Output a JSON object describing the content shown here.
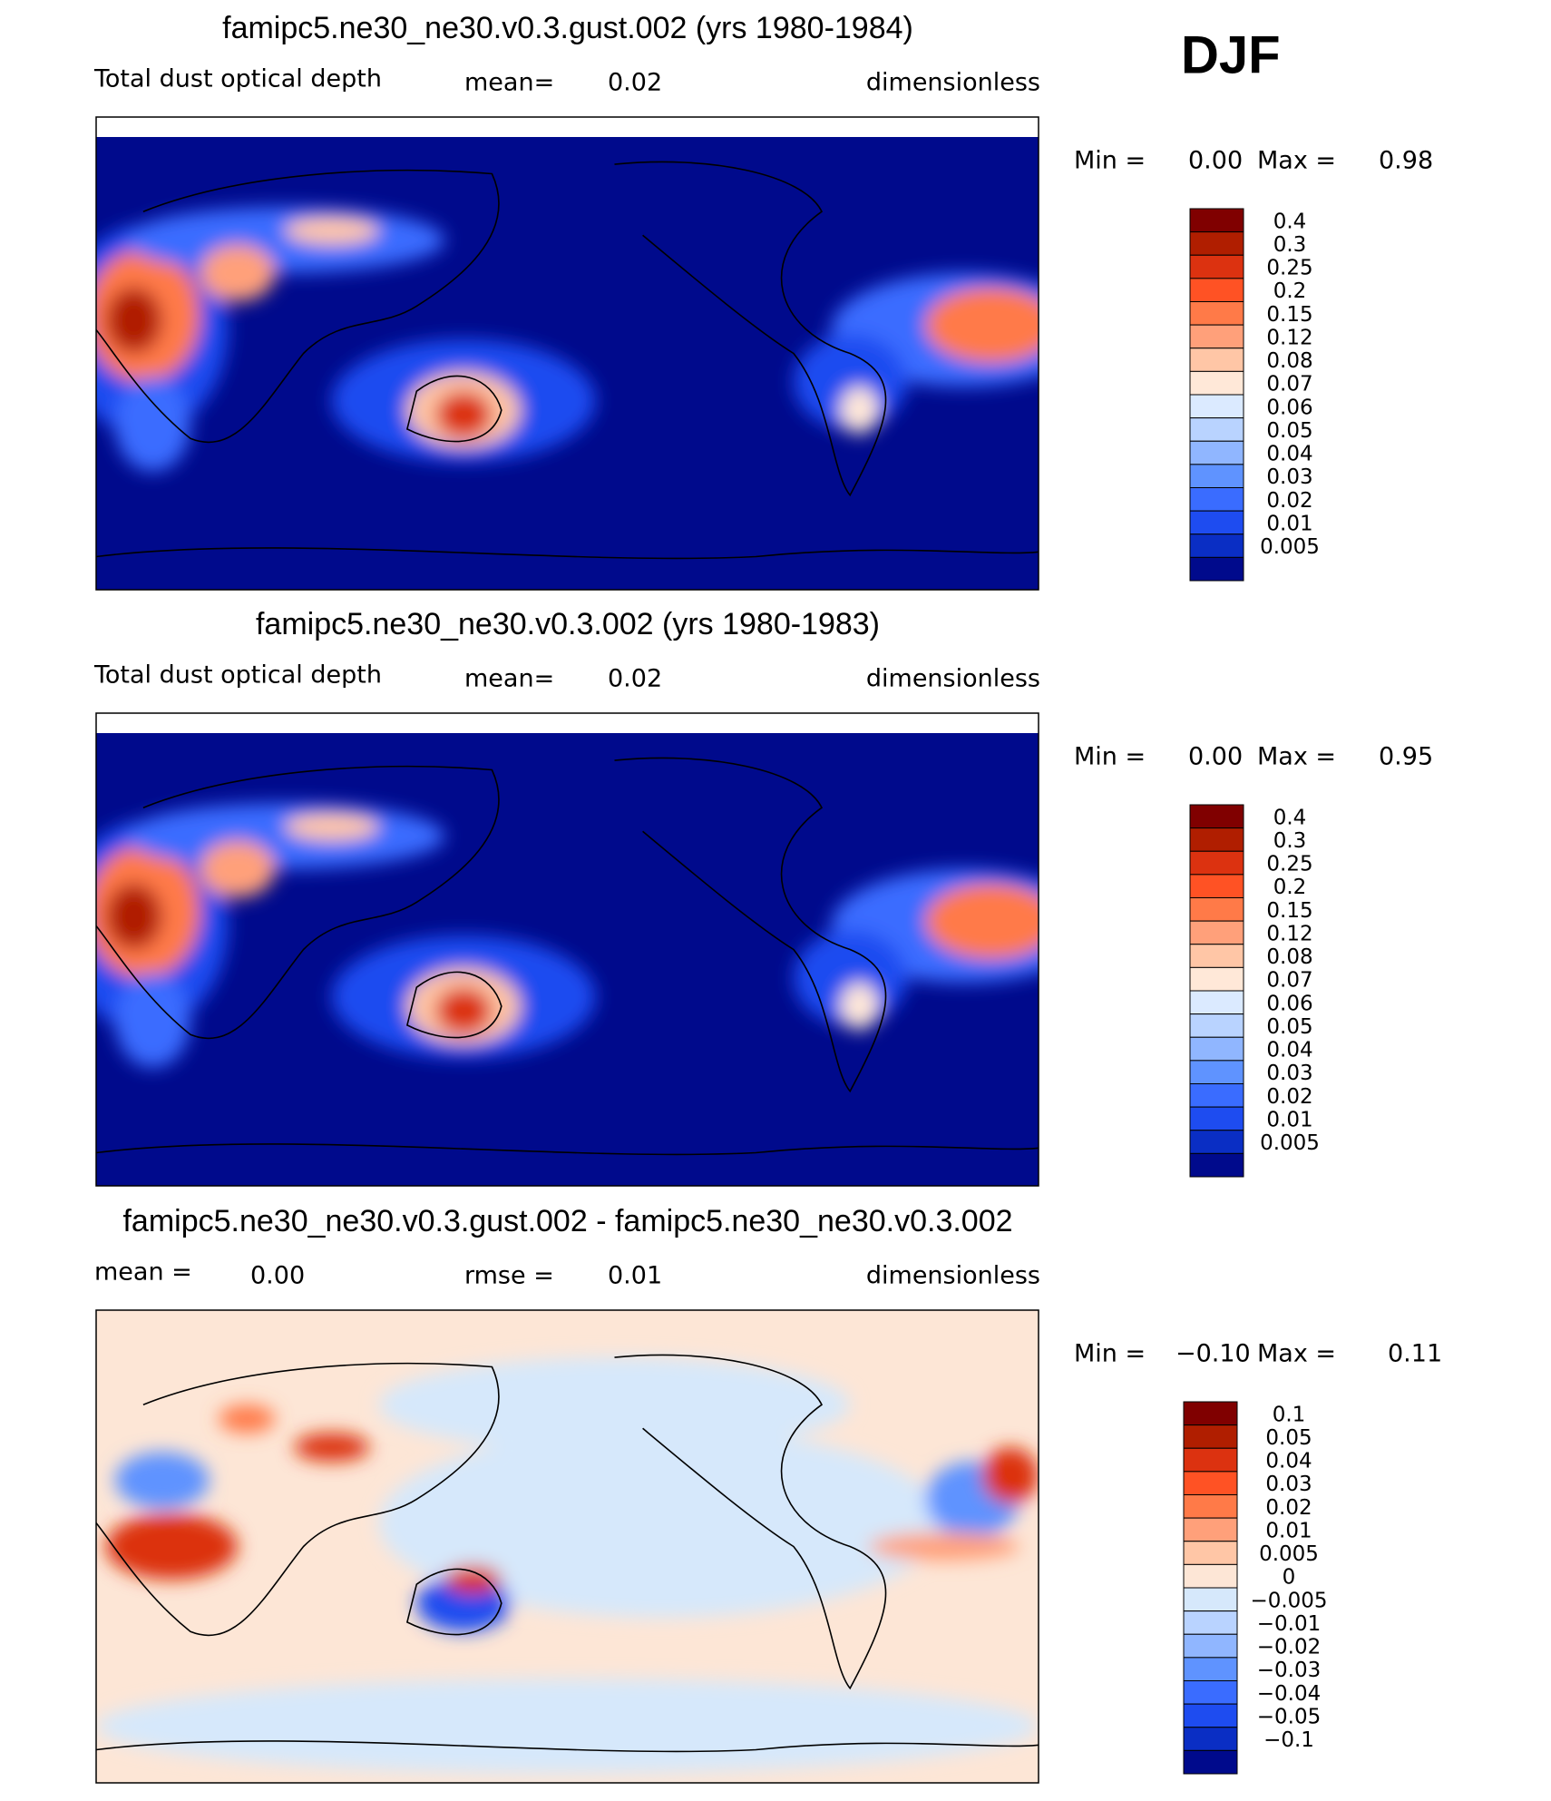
{
  "season": "DJF",
  "panels": [
    {
      "title": "famipc5.ne30_ne30.v0.3.gust.002 (yrs 1980-1984)",
      "left_label": "Total dust optical depth",
      "stat_label": "mean=",
      "stat_value": "0.02",
      "units": "dimensionless",
      "min_label": "Min =",
      "min_value": "0.00",
      "max_label": "Max =",
      "max_value": "0.98",
      "colorbar": {
        "labels": [
          "0.4",
          "0.3",
          "0.25",
          "0.2",
          "0.15",
          "0.12",
          "0.08",
          "0.07",
          "0.06",
          "0.05",
          "0.04",
          "0.03",
          "0.02",
          "0.01",
          "0.005"
        ],
        "colors": [
          "#800000",
          "#b01e00",
          "#dc3210",
          "#ff5224",
          "#ff7a48",
          "#ffa07a",
          "#ffc6a6",
          "#ffe8d8",
          "#dbeaff",
          "#b9d3ff",
          "#90b6ff",
          "#5f93ff",
          "#3a6cff",
          "#1e4cf0",
          "#0a2ec4",
          "#000a8c"
        ]
      }
    },
    {
      "title": "famipc5.ne30_ne30.v0.3.002 (yrs 1980-1983)",
      "left_label": "Total dust optical depth",
      "stat_label": "mean=",
      "stat_value": "0.02",
      "units": "dimensionless",
      "min_label": "Min =",
      "min_value": "0.00",
      "max_label": "Max =",
      "max_value": "0.95",
      "colorbar": {
        "labels": [
          "0.4",
          "0.3",
          "0.25",
          "0.2",
          "0.15",
          "0.12",
          "0.08",
          "0.07",
          "0.06",
          "0.05",
          "0.04",
          "0.03",
          "0.02",
          "0.01",
          "0.005"
        ],
        "colors": [
          "#800000",
          "#b01e00",
          "#dc3210",
          "#ff5224",
          "#ff7a48",
          "#ffa07a",
          "#ffc6a6",
          "#ffe8d8",
          "#dbeaff",
          "#b9d3ff",
          "#90b6ff",
          "#5f93ff",
          "#3a6cff",
          "#1e4cf0",
          "#0a2ec4",
          "#000a8c"
        ]
      }
    },
    {
      "title": "famipc5.ne30_ne30.v0.3.gust.002 - famipc5.ne30_ne30.v0.3.002",
      "left_label": "mean =",
      "left_value": "0.00",
      "stat_label": "rmse =",
      "stat_value": "0.01",
      "units": "dimensionless",
      "min_label": "Min =",
      "min_value": "−0.10",
      "max_label": "Max =",
      "max_value": "0.11",
      "colorbar": {
        "labels": [
          "0.1",
          "0.05",
          "0.04",
          "0.03",
          "0.02",
          "0.01",
          "0.005",
          "0",
          "−0.005",
          "−0.01",
          "−0.02",
          "−0.03",
          "−0.04",
          "−0.05",
          "−0.1"
        ],
        "colors": [
          "#800000",
          "#b01e00",
          "#dc3210",
          "#ff5224",
          "#ff7a48",
          "#ffa07a",
          "#ffc6a6",
          "#fde6d6",
          "#d6e8fb",
          "#b9d3ff",
          "#90b6ff",
          "#5f93ff",
          "#3a6cff",
          "#1e4cf0",
          "#0a2ec4",
          "#000a8c"
        ]
      }
    }
  ]
}
